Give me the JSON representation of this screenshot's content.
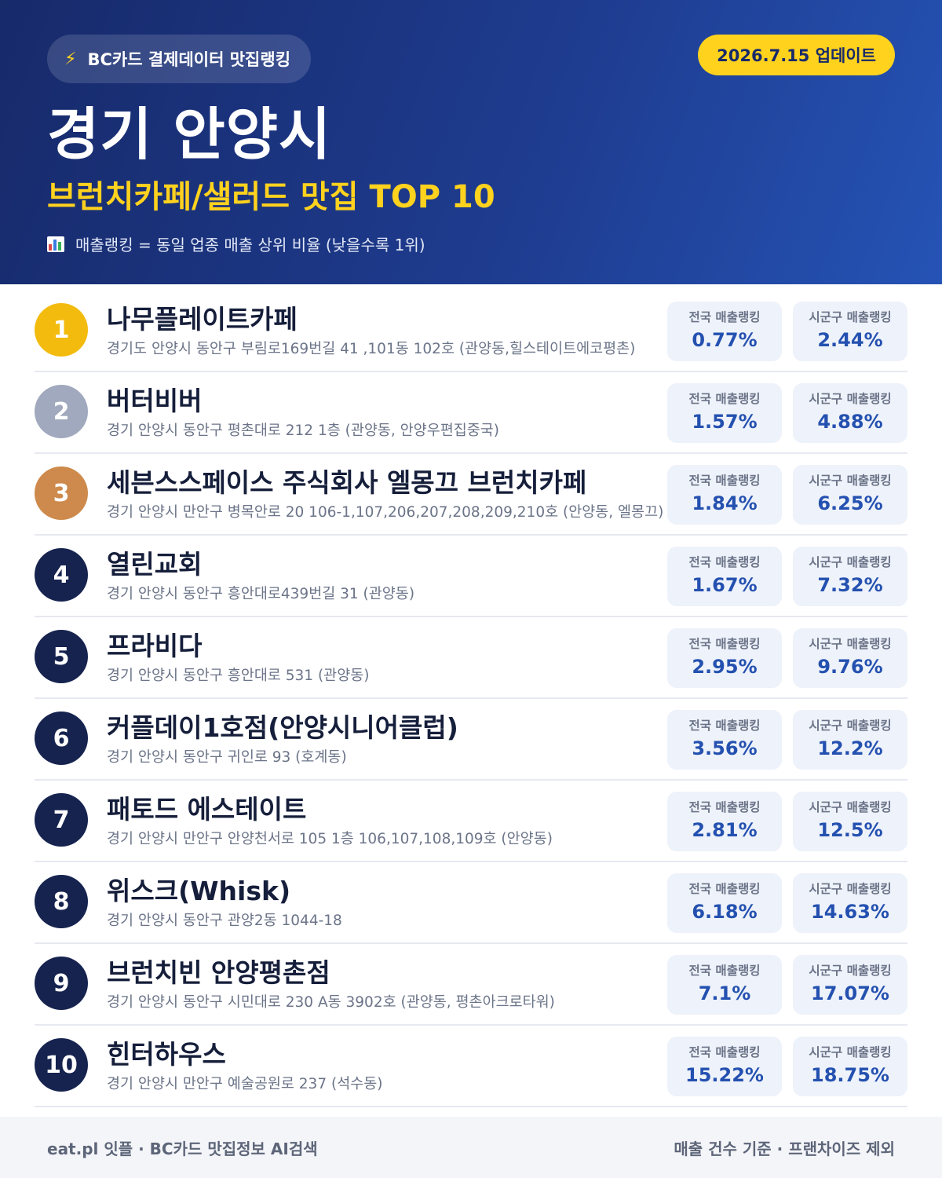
{
  "header": {
    "source_label": "BC카드 결제데이터 맛집랭킹",
    "source_icon": "lightning-bolt-icon",
    "update_label": "2026.7.15 업데이트",
    "region": "경기 안양시",
    "subtitle": "브런치카페/샐러드 맛집 TOP 10",
    "note_icon": "bar-chart-icon",
    "note": "매출랭킹 = 동일 업종 매출 상위 비율 (낮을수록 1위)"
  },
  "stat_labels": {
    "national": "전국 매출랭킹",
    "local": "시군구 매출랭킹"
  },
  "items": [
    {
      "rank": "1",
      "name": "나무플레이트카페",
      "address": "경기도 안양시 동안구 부림로169번길 41 ,101동 102호 (관양동,힐스테이트에코평촌)",
      "national": "0.77%",
      "local": "2.44%"
    },
    {
      "rank": "2",
      "name": "버터비버",
      "address": "경기 안양시 동안구 평촌대로 212 1층 (관양동, 안양우편집중국)",
      "national": "1.57%",
      "local": "4.88%"
    },
    {
      "rank": "3",
      "name": "세븐스스페이스 주식회사 엘몽끄 브런치카페",
      "address": "경기 안양시 만안구 병목안로 20 106-1,107,206,207,208,209,210호 (안양동, 엘몽끄)",
      "national": "1.84%",
      "local": "6.25%"
    },
    {
      "rank": "4",
      "name": "열린교회",
      "address": "경기 안양시 동안구 흥안대로439번길 31 (관양동)",
      "national": "1.67%",
      "local": "7.32%"
    },
    {
      "rank": "5",
      "name": "프라비다",
      "address": "경기 안양시 동안구 흥안대로 531 (관양동)",
      "national": "2.95%",
      "local": "9.76%"
    },
    {
      "rank": "6",
      "name": "커플데이1호점(안양시니어클럽)",
      "address": "경기 안양시 동안구 귀인로 93 (호계동)",
      "national": "3.56%",
      "local": "12.2%"
    },
    {
      "rank": "7",
      "name": "패토드 에스테이트",
      "address": "경기 안양시 만안구 안양천서로 105 1층 106,107,108,109호 (안양동)",
      "national": "2.81%",
      "local": "12.5%"
    },
    {
      "rank": "8",
      "name": "위스크(Whisk)",
      "address": "경기 안양시 동안구 관양2동 1044-18",
      "national": "6.18%",
      "local": "14.63%"
    },
    {
      "rank": "9",
      "name": "브런치빈 안양평촌점",
      "address": "경기 안양시 동안구 시민대로 230 A동 3902호 (관양동, 평촌아크로타워)",
      "national": "7.1%",
      "local": "17.07%"
    },
    {
      "rank": "10",
      "name": "힌터하우스",
      "address": "경기 안양시 만안구 예술공원로 237 (석수동)",
      "national": "15.22%",
      "local": "18.75%"
    }
  ],
  "colors": {
    "header_start": "#172a6a",
    "header_end": "#2553b5",
    "accent_yellow": "#ffd21e",
    "badge_gold": "#f2bb0e",
    "badge_silver": "#a0a9bd",
    "badge_bronze": "#cd8a4c",
    "badge_default": "#16234f",
    "stat_value": "#2451b0"
  },
  "footer": {
    "left": "eat.pl 잇플 · BC카드 맛집정보 AI검색",
    "right": "매출 건수 기준 · 프랜차이즈 제외"
  }
}
